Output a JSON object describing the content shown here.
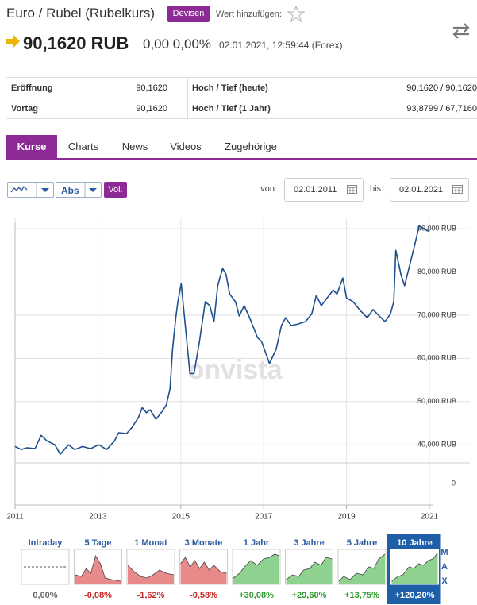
{
  "header": {
    "title": "Euro / Rubel (Rubelkurs)",
    "badge": "Devisen",
    "watch_label": "Wert hinzufügen:",
    "price": "90,1620 RUB",
    "change": "0,00 0,00%",
    "timestamp": "02.01.2021, 12:59:44 (Forex)"
  },
  "table": {
    "rows": [
      [
        "Eröffnung",
        "90,1620",
        "Hoch / Tief (heute)",
        "90,1620 / 90,1620"
      ],
      [
        "Vortag",
        "90,1620",
        "Hoch / Tief (1 Jahr)",
        "93,8799 / 67,7160"
      ]
    ]
  },
  "tabs": [
    "Kurse",
    "Charts",
    "News",
    "Videos",
    "Zugehörige"
  ],
  "controls": {
    "scale": "Abs",
    "volume": "Vol.",
    "from_label": "von:",
    "from": "02.01.2011",
    "to_label": "bis:",
    "to": "02.01.2021"
  },
  "chart_data": {
    "type": "line",
    "watermark": "onvista",
    "grid": true,
    "x": [
      2011.0,
      2011.15,
      2011.29,
      2011.48,
      2011.63,
      2011.77,
      2011.96,
      2012.09,
      2012.29,
      2012.44,
      2012.63,
      2012.82,
      2013.02,
      2013.21,
      2013.4,
      2013.5,
      2013.69,
      2013.82,
      2013.98,
      2014.07,
      2014.17,
      2014.26,
      2014.4,
      2014.55,
      2014.65,
      2014.74,
      2014.8,
      2014.88,
      2014.93,
      2015.01,
      2015.09,
      2015.22,
      2015.32,
      2015.45,
      2015.59,
      2015.7,
      2015.8,
      2015.89,
      2016.01,
      2016.09,
      2016.18,
      2016.32,
      2016.41,
      2016.53,
      2016.66,
      2016.85,
      2016.95,
      2017.14,
      2017.3,
      2017.43,
      2017.53,
      2017.66,
      2017.81,
      2018.01,
      2018.16,
      2018.27,
      2018.39,
      2018.58,
      2018.68,
      2018.77,
      2018.91,
      2019.0,
      2019.16,
      2019.31,
      2019.5,
      2019.64,
      2019.79,
      2019.93,
      2020.06,
      2020.14,
      2020.19,
      2020.31,
      2020.4,
      2020.52,
      2020.64,
      2020.75,
      2020.88,
      2021.0
    ],
    "series": [
      {
        "name": "EUR/RUB",
        "color": "#1d4f8c",
        "values": [
          39.6,
          38.9,
          39.3,
          39.1,
          42.2,
          40.9,
          40.0,
          37.8,
          40.0,
          38.9,
          39.6,
          39.1,
          40.0,
          38.9,
          40.9,
          42.8,
          42.6,
          44.0,
          46.4,
          48.6,
          47.4,
          48.1,
          45.9,
          47.7,
          49.2,
          52.9,
          62.1,
          69.4,
          73.1,
          77.3,
          69.4,
          56.5,
          56.5,
          63.9,
          73.1,
          72.2,
          68.5,
          76.8,
          80.8,
          79.5,
          74.9,
          73.1,
          69.8,
          72.2,
          69.4,
          64.8,
          63.9,
          58.8,
          62.1,
          67.6,
          69.4,
          67.6,
          67.9,
          68.5,
          70.3,
          74.6,
          72.2,
          74.6,
          75.8,
          74.9,
          78.6,
          74.0,
          73.1,
          71.3,
          69.4,
          71.3,
          69.8,
          68.5,
          70.3,
          73.1,
          85.0,
          79.5,
          76.8,
          81.4,
          86.0,
          90.6,
          90.0,
          89.3
        ]
      }
    ],
    "xlim": [
      2011,
      2021
    ],
    "xticks": [
      2011,
      2013,
      2015,
      2017,
      2019,
      2021
    ],
    "ylim": [
      36,
      92.4
    ],
    "yticks": [
      {
        "value": 40,
        "label": "40,000 RUB"
      },
      {
        "value": 50,
        "label": "50,000 RUB"
      },
      {
        "value": 60,
        "label": "60,000 RUB"
      },
      {
        "value": 70,
        "label": "70,000 RUB"
      },
      {
        "value": 80,
        "label": "80,000 RUB"
      },
      {
        "value": 90,
        "label": "90,000 RUB"
      }
    ],
    "volume_yticks": [
      0
    ]
  },
  "periods": [
    {
      "label": "Intraday",
      "change": "0,00%"
    },
    {
      "label": "5 Tage",
      "change": "-0,08%"
    },
    {
      "label": "1 Monat",
      "change": "-1,62%"
    },
    {
      "label": "3 Monate",
      "change": "-0,58%"
    },
    {
      "label": "1 Jahr",
      "change": "+30,08%"
    },
    {
      "label": "3 Jahre",
      "change": "+29,60%"
    },
    {
      "label": "5 Jahre",
      "change": "+13,75%"
    },
    {
      "label": "10 Jahre",
      "change": "+120,20%"
    }
  ],
  "max_label": [
    "M",
    "A",
    "X"
  ]
}
